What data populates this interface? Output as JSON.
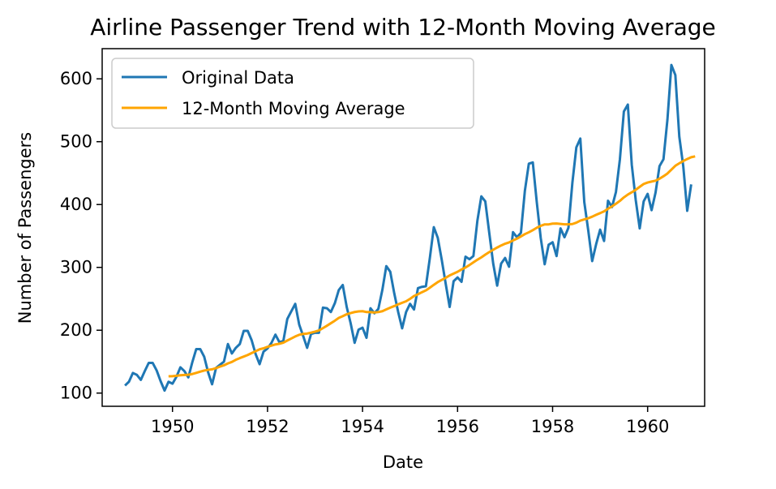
{
  "chart_data": {
    "type": "line",
    "title": "Airline Passenger Trend with 12-Month Moving Average",
    "xlabel": "Date",
    "ylabel": "Number of Passengers",
    "x_start": "1949-01",
    "x_end": "1960-12",
    "xlim": [
      1948.52,
      1961.2
    ],
    "ylim": [
      79,
      648
    ],
    "x_ticks": [
      1950,
      1952,
      1954,
      1956,
      1958,
      1960
    ],
    "y_ticks": [
      100,
      200,
      300,
      400,
      500,
      600
    ],
    "grid": false,
    "legend_position": "upper-left",
    "series": [
      {
        "name": "Original Data",
        "color": "#1f77b4",
        "values": [
          112,
          118,
          132,
          129,
          121,
          135,
          148,
          148,
          136,
          119,
          104,
          118,
          115,
          126,
          141,
          135,
          125,
          149,
          170,
          170,
          158,
          133,
          114,
          140,
          145,
          150,
          178,
          163,
          172,
          178,
          199,
          199,
          184,
          162,
          146,
          166,
          171,
          180,
          193,
          181,
          183,
          218,
          230,
          242,
          209,
          191,
          172,
          194,
          196,
          196,
          236,
          235,
          229,
          243,
          264,
          272,
          237,
          211,
          180,
          201,
          204,
          188,
          235,
          227,
          234,
          264,
          302,
          293,
          259,
          229,
          203,
          229,
          242,
          233,
          267,
          269,
          270,
          315,
          364,
          347,
          312,
          274,
          237,
          278,
          284,
          277,
          317,
          313,
          318,
          374,
          413,
          405,
          355,
          306,
          271,
          306,
          315,
          301,
          356,
          348,
          355,
          422,
          465,
          467,
          404,
          347,
          305,
          336,
          340,
          318,
          362,
          348,
          363,
          435,
          491,
          505,
          404,
          359,
          310,
          337,
          360,
          342,
          406,
          396,
          420,
          472,
          548,
          559,
          463,
          407,
          362,
          405,
          417,
          391,
          419,
          461,
          472,
          535,
          622,
          606,
          508,
          461,
          390,
          432
        ]
      },
      {
        "name": "12-Month Moving Average",
        "color": "#ffa500",
        "start_index": 11,
        "values": [
          126.67,
          126.92,
          127.58,
          128.33,
          128.83,
          129.17,
          130.33,
          132.17,
          134.0,
          135.83,
          137.0,
          137.83,
          139.67,
          142.17,
          144.17,
          147.25,
          149.58,
          153.0,
          155.67,
          158.08,
          160.58,
          163.67,
          166.67,
          169.67,
          171.25,
          173.58,
          175.5,
          177.42,
          178.5,
          180.25,
          183.67,
          186.83,
          190.08,
          192.75,
          194.17,
          194.67,
          196.17,
          197.83,
          199.67,
          203.33,
          207.17,
          211.17,
          215.17,
          219.67,
          222.33,
          225.42,
          227.33,
          229.0,
          229.92,
          230.25,
          228.92,
          228.83,
          228.25,
          228.92,
          230.25,
          233.17,
          235.92,
          238.42,
          241.17,
          243.67,
          246.08,
          249.92,
          254.5,
          257.25,
          260.5,
          263.42,
          267.67,
          272.25,
          276.58,
          280.08,
          283.42,
          287.25,
          290.17,
          293.0,
          296.67,
          299.83,
          303.75,
          308.0,
          312.17,
          315.92,
          320.25,
          324.33,
          328.0,
          331.58,
          334.83,
          337.67,
          339.75,
          342.83,
          345.75,
          349.25,
          352.92,
          355.83,
          359.25,
          363.0,
          366.08,
          368.42,
          368.42,
          369.67,
          369.83,
          369.17,
          368.5,
          368.5,
          369.0,
          371.17,
          374.42,
          376.25,
          378.17,
          380.67,
          383.67,
          386.33,
          389.17,
          393.33,
          397.0,
          401.25,
          405.83,
          411.33,
          415.83,
          419.5,
          423.5,
          428.17,
          432.67,
          435.0,
          436.58,
          437.92,
          441.08,
          445.0,
          449.33,
          455.58,
          461.67,
          465.58,
          469.17,
          472.42,
          475.25,
          476.67
        ]
      }
    ]
  }
}
